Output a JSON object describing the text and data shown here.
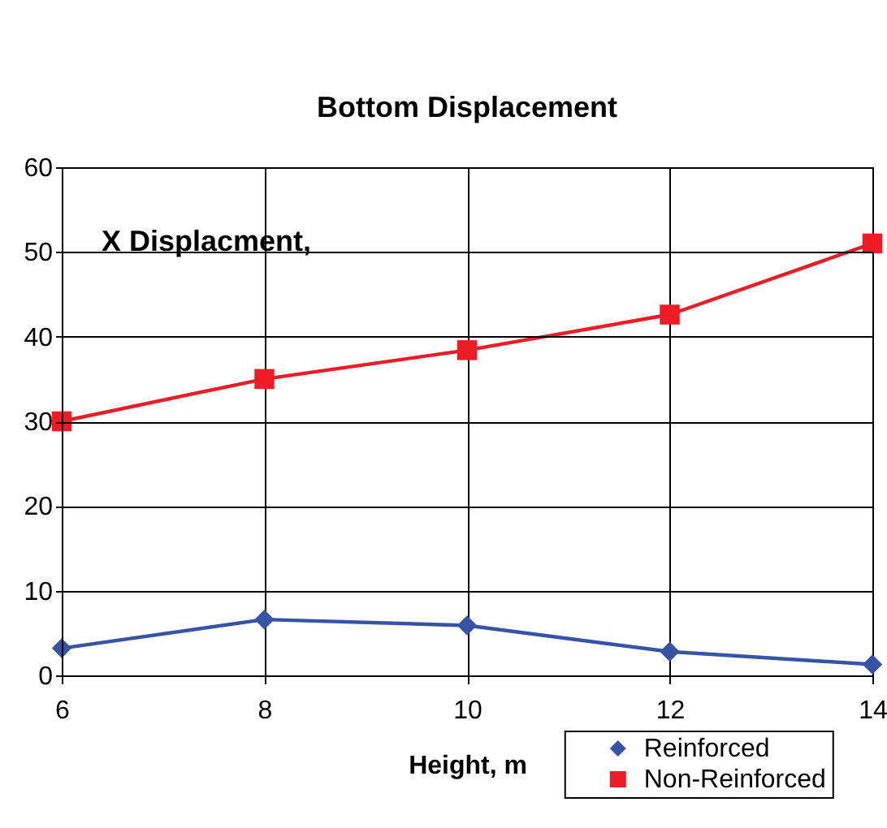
{
  "chart_data": {
    "type": "line",
    "title": "Bottom Displacement",
    "xlabel": "Height, m",
    "ylabel": "X Displacment,",
    "x": [
      6,
      8,
      10,
      12,
      14
    ],
    "series": [
      {
        "name": "Reinforced",
        "color": "#3653a5",
        "marker": "diamond",
        "values": [
          3.2,
          6.6,
          5.9,
          2.8,
          1.3
        ]
      },
      {
        "name": "Non-Reinforced",
        "color": "#ee1c25",
        "marker": "square",
        "values": [
          30,
          35,
          38.4,
          42.6,
          51
        ]
      }
    ],
    "xlim": [
      6,
      14
    ],
    "xticks": [
      6,
      8,
      10,
      12,
      14
    ],
    "ylim": [
      0,
      60
    ],
    "yticks": [
      0,
      10,
      20,
      30,
      40,
      50,
      60
    ],
    "grid": true,
    "legend": "bottom right",
    "line_style": "solid"
  }
}
